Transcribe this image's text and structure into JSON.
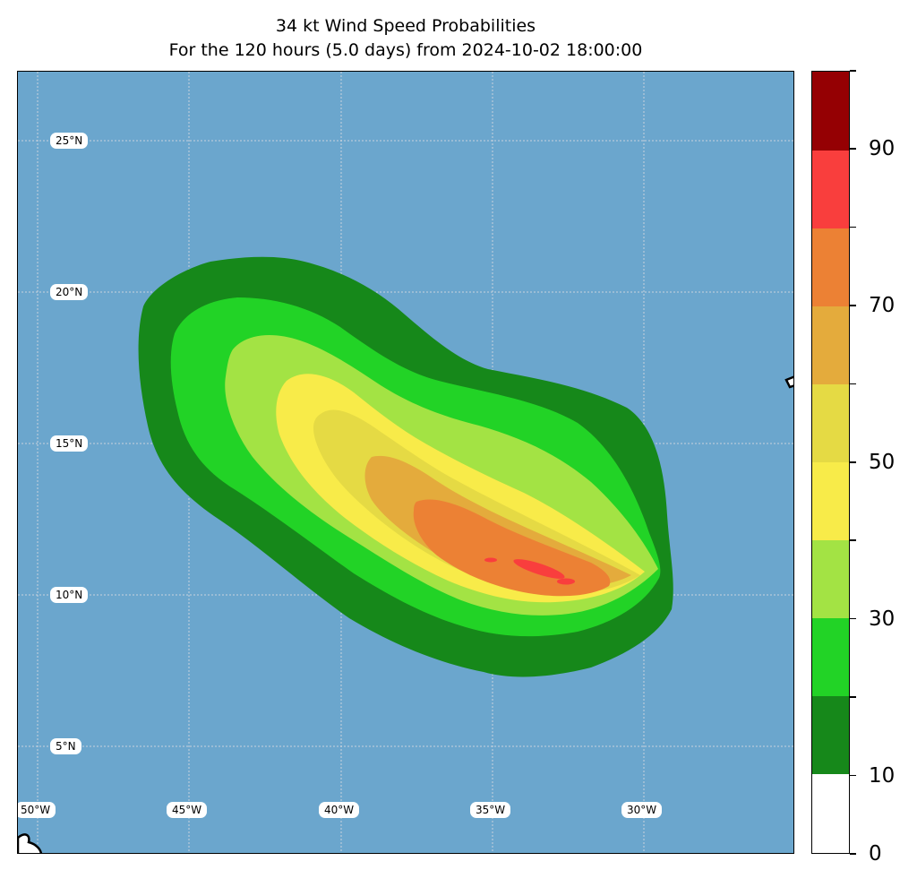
{
  "title": {
    "line1": "34 kt Wind Speed Probabilities",
    "line2": "For the 120 hours (5.0 days) from 2024-10-02 18:00:00"
  },
  "map": {
    "ocean_color": "#6ba6cd",
    "lat_labels": [
      "25°N",
      "20°N",
      "15°N",
      "10°N",
      "5°N"
    ],
    "lon_labels": [
      "50°W",
      "45°W",
      "40°W",
      "35°W",
      "30°W"
    ],
    "gridlines": "dotted"
  },
  "colorbar": {
    "levels": [
      0,
      10,
      20,
      30,
      40,
      50,
      60,
      70,
      80,
      90,
      100
    ],
    "tick_labels": [
      "0",
      "10",
      "30",
      "50",
      "70",
      "90"
    ],
    "colors": [
      "#ffffff",
      "#16881a",
      "#22d326",
      "#a3e344",
      "#f8eb49",
      "#e5da44",
      "#e4ab3c",
      "#ec8134",
      "#f93e3d",
      "#950003",
      "#8227d9"
    ]
  },
  "probability_bands": [
    {
      "min": 10,
      "color": "#16881a"
    },
    {
      "min": 20,
      "color": "#22d326"
    },
    {
      "min": 30,
      "color": "#a3e344"
    },
    {
      "min": 40,
      "color": "#f8eb49"
    },
    {
      "min": 50,
      "color": "#e5da44"
    },
    {
      "min": 60,
      "color": "#e4ab3c"
    },
    {
      "min": 70,
      "color": "#ec8134"
    },
    {
      "min": 80,
      "color": "#f93e3d"
    }
  ]
}
